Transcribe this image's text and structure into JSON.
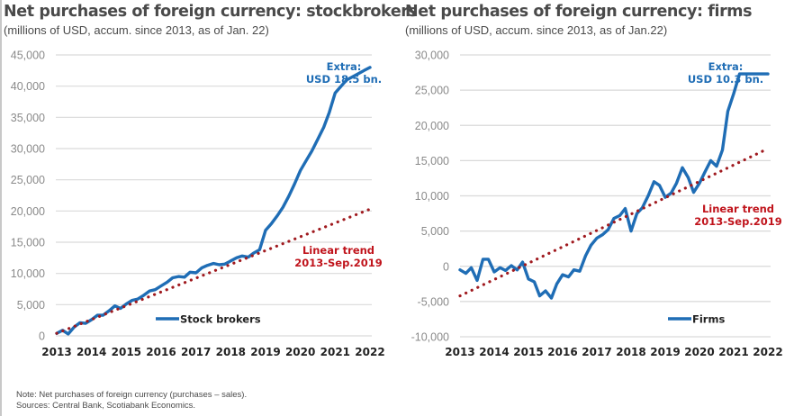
{
  "footer": {
    "note": "Note: Net purchases of foreign currency (purchases – sales).",
    "sources": "Sources: Central Bank, Scotiabank Economics."
  },
  "colors": {
    "series": "#1f6db5",
    "trend": "#a01a1f",
    "grid": "#d9d9d9",
    "annotation_red": "#c0141c"
  },
  "chart_data": [
    {
      "type": "line",
      "title": "Net purchases of foreign currency: stockbrokers",
      "subtitle": "(millions of USD, accum. since 2013, as of Jan. 22)",
      "xlabel": "",
      "ylabel": "",
      "xlim": [
        2013,
        2022
      ],
      "ylim": [
        0,
        45000
      ],
      "yticks": [
        0,
        5000,
        10000,
        15000,
        20000,
        25000,
        30000,
        35000,
        40000,
        45000
      ],
      "ytick_labels": [
        "0",
        "5,000",
        "10,000",
        "15,000",
        "20,000",
        "25,000",
        "30,000",
        "35,000",
        "40,000",
        "45,000"
      ],
      "xtick_labels": [
        "2013",
        "2014",
        "2015",
        "2016",
        "2017",
        "2018",
        "2019",
        "2020",
        "2021",
        "2022"
      ],
      "grid": true,
      "legend": {
        "placement": "bottom-center",
        "entries": [
          "Stock brokers"
        ]
      },
      "annotations": [
        {
          "text_lines": [
            "Extra:",
            "USD 18.5 bn."
          ],
          "color": "blue",
          "placement": "top-right"
        },
        {
          "text_lines": [
            "Linear trend",
            "2013-Sep.2019"
          ],
          "color": "red",
          "placement": "right"
        }
      ],
      "series": [
        {
          "name": "Stock brokers",
          "x": [
            2013.0,
            2013.17,
            2013.33,
            2013.5,
            2013.67,
            2013.83,
            2014.0,
            2014.17,
            2014.33,
            2014.5,
            2014.67,
            2014.83,
            2015.0,
            2015.17,
            2015.33,
            2015.5,
            2015.67,
            2015.83,
            2016.0,
            2016.17,
            2016.33,
            2016.5,
            2016.67,
            2016.83,
            2017.0,
            2017.17,
            2017.33,
            2017.5,
            2017.67,
            2017.83,
            2018.0,
            2018.17,
            2018.33,
            2018.5,
            2018.67,
            2018.83,
            2019.0,
            2019.17,
            2019.33,
            2019.5,
            2019.67,
            2019.83,
            2020.0,
            2020.17,
            2020.33,
            2020.5,
            2020.67,
            2020.83,
            2021.0,
            2021.17,
            2021.33,
            2021.5,
            2021.67,
            2021.83,
            2022.0
          ],
          "values": [
            400,
            900,
            300,
            1400,
            2100,
            2000,
            2600,
            3300,
            3300,
            4000,
            4800,
            4400,
            5100,
            5700,
            5900,
            6500,
            7200,
            7400,
            8000,
            8600,
            9300,
            9500,
            9400,
            10200,
            10100,
            10900,
            11300,
            11600,
            11400,
            11500,
            12000,
            12500,
            12800,
            12600,
            13300,
            13800,
            16900,
            18000,
            19200,
            20600,
            22400,
            24300,
            26500,
            28100,
            29600,
            31500,
            33400,
            35800,
            38900,
            40000,
            41000,
            41500,
            42000,
            42500,
            43000
          ],
          "color": "#1f6db5"
        },
        {
          "name": "Linear trend 2013-Sep.2019",
          "x": [
            2013,
            2022
          ],
          "values": [
            400,
            20300
          ],
          "style": "dotted",
          "color": "#a01a1f"
        }
      ]
    },
    {
      "type": "line",
      "title": "Net purchases of foreign currency: firms",
      "subtitle": "(millions of USD, accum. since 2013, as of Jan.22)",
      "xlabel": "",
      "ylabel": "",
      "xlim": [
        2013,
        2022
      ],
      "ylim": [
        -10000,
        30000
      ],
      "yticks": [
        -10000,
        -5000,
        0,
        5000,
        10000,
        15000,
        20000,
        25000,
        30000
      ],
      "ytick_labels": [
        "-10,000",
        "-5,000",
        "0",
        "5,000",
        "10,000",
        "15,000",
        "20,000",
        "25,000",
        "30,000"
      ],
      "xtick_labels": [
        "2013",
        "2014",
        "2015",
        "2016",
        "2017",
        "2018",
        "2019",
        "2020",
        "2021",
        "2022"
      ],
      "grid": true,
      "legend": {
        "placement": "bottom-right",
        "entries": [
          "Firms"
        ]
      },
      "annotations": [
        {
          "text_lines": [
            "Extra:",
            "USD 10.3 bn."
          ],
          "color": "blue",
          "placement": "top-right"
        },
        {
          "text_lines": [
            "Linear trend",
            "2013-Sep.2019"
          ],
          "color": "red",
          "placement": "right"
        }
      ],
      "series": [
        {
          "name": "Firms",
          "x": [
            2013.0,
            2013.17,
            2013.33,
            2013.5,
            2013.67,
            2013.83,
            2014.0,
            2014.17,
            2014.33,
            2014.5,
            2014.67,
            2014.83,
            2015.0,
            2015.17,
            2015.33,
            2015.5,
            2015.67,
            2015.83,
            2016.0,
            2016.17,
            2016.33,
            2016.5,
            2016.67,
            2016.83,
            2017.0,
            2017.17,
            2017.33,
            2017.5,
            2017.67,
            2017.83,
            2018.0,
            2018.17,
            2018.33,
            2018.5,
            2018.67,
            2018.83,
            2019.0,
            2019.17,
            2019.33,
            2019.5,
            2019.67,
            2019.83,
            2020.0,
            2020.17,
            2020.33,
            2020.5,
            2020.67,
            2020.83,
            2021.0,
            2021.17,
            2021.33,
            2021.5,
            2021.67,
            2021.83,
            2022.0
          ],
          "values": [
            -500,
            -1000,
            -200,
            -2000,
            1000,
            1000,
            -800,
            -200,
            -600,
            100,
            -500,
            600,
            -1800,
            -2200,
            -4200,
            -3500,
            -4500,
            -2500,
            -1200,
            -1500,
            -500,
            -700,
            1500,
            3000,
            4000,
            4500,
            5200,
            6800,
            7200,
            8200,
            5000,
            7500,
            8300,
            10000,
            12000,
            11500,
            9800,
            10400,
            11800,
            14000,
            12600,
            10500,
            11800,
            13500,
            15000,
            14200,
            16500,
            22000,
            24500,
            27300,
            27300,
            27300,
            27300,
            27300,
            27300
          ],
          "color": "#1f6db5"
        },
        {
          "name": "Linear trend 2013-Sep.2019",
          "x": [
            2013,
            2022
          ],
          "values": [
            -4200,
            16700
          ],
          "style": "dotted",
          "color": "#a01a1f"
        }
      ]
    }
  ]
}
